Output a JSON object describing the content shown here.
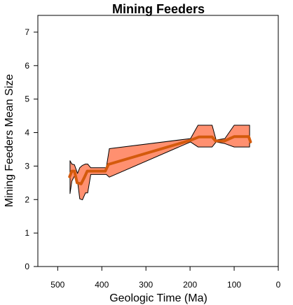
{
  "chart_data": {
    "type": "area",
    "title": "Mining Feeders",
    "xlabel": "Geologic Time (Ma)",
    "ylabel": "Mining Feeders Mean Size",
    "xlim": [
      545,
      0
    ],
    "ylim": [
      0,
      7.5
    ],
    "x_reversed": true,
    "x_ticks": [
      500,
      400,
      300,
      200,
      100,
      0
    ],
    "y_ticks": [
      0,
      1,
      2,
      3,
      4,
      5,
      6,
      7
    ],
    "grid": false,
    "series": [
      {
        "type": "band",
        "color": "#ff9070",
        "points": [
          {
            "x": 472,
            "lower": 2.18,
            "upper": 3.16
          },
          {
            "x": 468,
            "lower": 2.55,
            "upper": 3.06
          },
          {
            "x": 462,
            "lower": 2.7,
            "upper": 3.04
          },
          {
            "x": 455,
            "lower": 2.55,
            "upper": 2.78
          },
          {
            "x": 450,
            "lower": 2.02,
            "upper": 2.95
          },
          {
            "x": 444,
            "lower": 1.99,
            "upper": 3.02
          },
          {
            "x": 437,
            "lower": 2.2,
            "upper": 3.06
          },
          {
            "x": 432,
            "lower": 2.2,
            "upper": 3.06
          },
          {
            "x": 425,
            "lower": 2.75,
            "upper": 2.95
          },
          {
            "x": 390,
            "lower": 2.75,
            "upper": 2.95
          },
          {
            "x": 383,
            "lower": 2.67,
            "upper": 3.52
          },
          {
            "x": 199,
            "lower": 3.72,
            "upper": 3.82
          },
          {
            "x": 182,
            "lower": 3.57,
            "upper": 4.22
          },
          {
            "x": 150,
            "lower": 3.57,
            "upper": 4.22
          },
          {
            "x": 141,
            "lower": 3.72,
            "upper": 3.78
          },
          {
            "x": 121,
            "lower": 3.67,
            "upper": 3.82
          },
          {
            "x": 100,
            "lower": 3.57,
            "upper": 4.22
          },
          {
            "x": 65,
            "lower": 3.57,
            "upper": 4.22
          }
        ]
      },
      {
        "type": "line",
        "color": "#d45a0c",
        "points": [
          {
            "x": 473,
            "y": 2.68
          },
          {
            "x": 468,
            "y": 2.85
          },
          {
            "x": 462,
            "y": 2.85
          },
          {
            "x": 456,
            "y": 2.5
          },
          {
            "x": 447,
            "y": 2.47
          },
          {
            "x": 440,
            "y": 2.65
          },
          {
            "x": 433,
            "y": 2.85
          },
          {
            "x": 392,
            "y": 2.85
          },
          {
            "x": 385,
            "y": 3.05
          },
          {
            "x": 199,
            "y": 3.77
          },
          {
            "x": 180,
            "y": 3.87
          },
          {
            "x": 150,
            "y": 3.87
          },
          {
            "x": 142,
            "y": 3.75
          },
          {
            "x": 122,
            "y": 3.75
          },
          {
            "x": 100,
            "y": 3.88
          },
          {
            "x": 67,
            "y": 3.88
          },
          {
            "x": 63,
            "y": 3.72
          }
        ]
      }
    ]
  }
}
